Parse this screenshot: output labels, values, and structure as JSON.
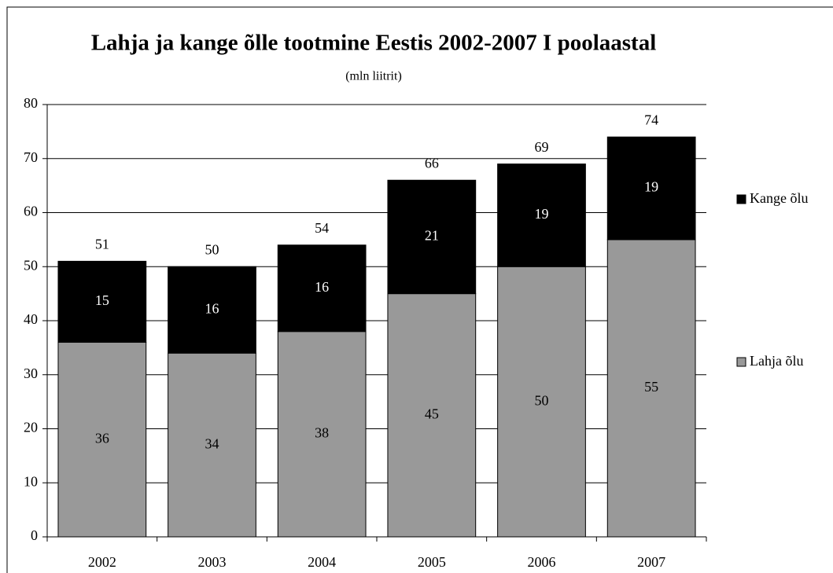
{
  "chart_data": {
    "type": "stacked_bar",
    "title": "Lahja ja kange õlle tootmine Eestis 2002-2007 I poolaastal",
    "subtitle": "(mln liitrit)",
    "categories": [
      "2002",
      "2003",
      "2004",
      "2005",
      "2006",
      "2007"
    ],
    "series": [
      {
        "name": "Lahja õlu",
        "color": "#999999",
        "values": [
          36,
          34,
          38,
          45,
          50,
          55
        ]
      },
      {
        "name": "Kange õlu",
        "color": "#000000",
        "values": [
          15,
          16,
          16,
          21,
          19,
          19
        ]
      }
    ],
    "totals": [
      51,
      50,
      54,
      66,
      69,
      74
    ],
    "ylim": [
      0,
      80
    ],
    "yticks": [
      0,
      10,
      20,
      30,
      40,
      50,
      60,
      70,
      80
    ],
    "grid": true,
    "legend": "right"
  }
}
